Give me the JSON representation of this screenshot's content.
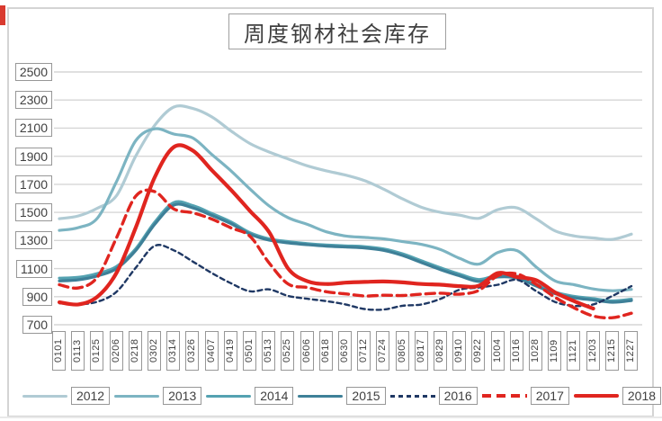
{
  "page": {
    "red_tab_color": "#d93a2f",
    "divider_color": "#e9e9e9"
  },
  "chart_data": {
    "type": "line",
    "title": "周度钢材社会库存",
    "xlabel": "",
    "ylabel": "",
    "ylim": [
      700,
      2500
    ],
    "y_ticks": [
      2500,
      2300,
      2100,
      1900,
      1700,
      1500,
      1300,
      1100,
      900,
      700
    ],
    "grid": true,
    "legend_position": "bottom",
    "x_labels": [
      "0101",
      "0113",
      "0125",
      "0206",
      "0218",
      "0302",
      "0314",
      "0326",
      "0407",
      "0419",
      "0501",
      "0513",
      "0525",
      "0606",
      "0618",
      "0630",
      "0712",
      "0724",
      "0805",
      "0817",
      "0829",
      "0910",
      "0922",
      "1004",
      "1016",
      "1028",
      "1109",
      "1121",
      "1203",
      "1215",
      "1227"
    ],
    "series": [
      {
        "name": "2012",
        "color": "#b0cbd4",
        "style": "solid",
        "width": 3.2,
        "values": [
          1455,
          1475,
          1530,
          1620,
          1900,
          2120,
          2250,
          2240,
          2180,
          2080,
          1990,
          1930,
          1880,
          1832,
          1796,
          1766,
          1726,
          1666,
          1596,
          1536,
          1500,
          1480,
          1458,
          1520,
          1532,
          1455,
          1368,
          1332,
          1318,
          1308,
          1345
        ]
      },
      {
        "name": "2013",
        "color": "#7cb4c2",
        "style": "solid",
        "width": 3.2,
        "values": [
          1372,
          1392,
          1460,
          1720,
          2010,
          2095,
          2058,
          2030,
          1912,
          1796,
          1666,
          1546,
          1462,
          1415,
          1362,
          1332,
          1322,
          1312,
          1292,
          1272,
          1235,
          1172,
          1132,
          1215,
          1228,
          1112,
          1012,
          985,
          955,
          942,
          952
        ]
      },
      {
        "name": "2014",
        "color": "#54a2b1",
        "style": "solid",
        "width": 3.2,
        "values": [
          1032,
          1038,
          1065,
          1115,
          1240,
          1430,
          1570,
          1548,
          1492,
          1432,
          1355,
          1312,
          1292,
          1278,
          1268,
          1262,
          1256,
          1240,
          1205,
          1155,
          1105,
          1060,
          1022,
          1052,
          1045,
          988,
          932,
          902,
          886,
          870,
          882
        ]
      },
      {
        "name": "2015",
        "color": "#3e8098",
        "style": "solid",
        "width": 3.2,
        "values": [
          1012,
          1020,
          1048,
          1100,
          1228,
          1415,
          1552,
          1532,
          1478,
          1420,
          1345,
          1302,
          1283,
          1270,
          1260,
          1254,
          1247,
          1230,
          1193,
          1142,
          1092,
          1048,
          1008,
          1040,
          1032,
          976,
          921,
          892,
          876,
          860,
          872
        ]
      },
      {
        "name": "2016",
        "color": "#1f3864",
        "style": "dashed-small",
        "width": 2.4,
        "values": [
          853,
          846,
          864,
          935,
          1105,
          1262,
          1230,
          1150,
          1068,
          995,
          938,
          952,
          905,
          885,
          868,
          845,
          812,
          808,
          835,
          845,
          885,
          950,
          965,
          985,
          1020,
          940,
          862,
          835,
          845,
          905,
          975
        ]
      },
      {
        "name": "2017",
        "color": "#e0251f",
        "style": "dashed",
        "width": 3.4,
        "values": [
          985,
          962,
          1040,
          1320,
          1615,
          1648,
          1525,
          1497,
          1452,
          1390,
          1330,
          1140,
          990,
          965,
          935,
          920,
          905,
          910,
          908,
          918,
          925,
          918,
          945,
          1050,
          1062,
          988,
          895,
          820,
          762,
          750,
          782
        ]
      },
      {
        "name": "2018",
        "color": "#e0251f",
        "style": "solid",
        "width": 4.2,
        "values": [
          860,
          845,
          900,
          1070,
          1390,
          1750,
          1965,
          1940,
          1800,
          1660,
          1510,
          1360,
          1100,
          1010,
          990,
          1000,
          1005,
          1008,
          1002,
          990,
          985,
          975,
          978,
          1068,
          1040,
          1018,
          930,
          868,
          815,
          null,
          null
        ]
      }
    ]
  }
}
